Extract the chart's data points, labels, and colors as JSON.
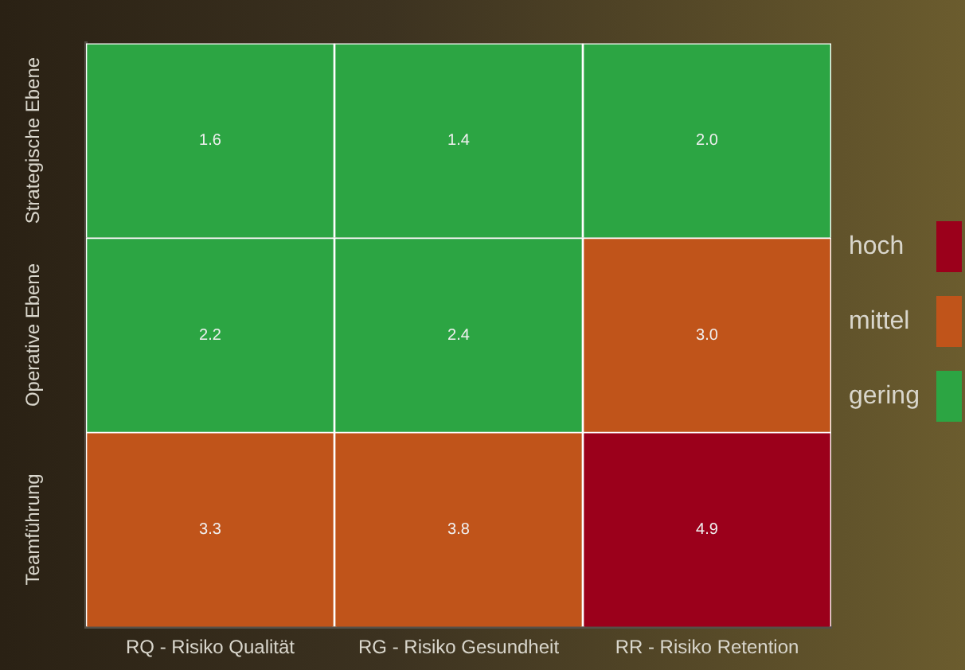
{
  "chart_data": {
    "type": "heatmap",
    "categories": [
      "RQ - Risiko Qualität",
      "RG - Risiko Gesundheit",
      "RR - Risiko Retention"
    ],
    "y_categories": [
      "Strategische Ebene",
      "Operative Ebene",
      "Teamführung"
    ],
    "cells": [
      [
        1.6,
        1.4,
        2.0
      ],
      [
        2.2,
        2.4,
        3.0
      ],
      [
        3.3,
        3.8,
        4.9
      ]
    ],
    "cell_labels": [
      [
        "1.6",
        "1.4",
        "2.0"
      ],
      [
        "2.2",
        "2.4",
        "3.0"
      ],
      [
        "3.3",
        "3.8",
        "4.9"
      ]
    ],
    "colors": [
      [
        "#2ca543",
        "#2ca543",
        "#2ca543"
      ],
      [
        "#2ca543",
        "#2ca543",
        "#c0541a"
      ],
      [
        "#c0541a",
        "#c0541a",
        "#9b001b"
      ]
    ],
    "annotations": [
      "hoch",
      "mittel",
      "gering"
    ]
  }
}
